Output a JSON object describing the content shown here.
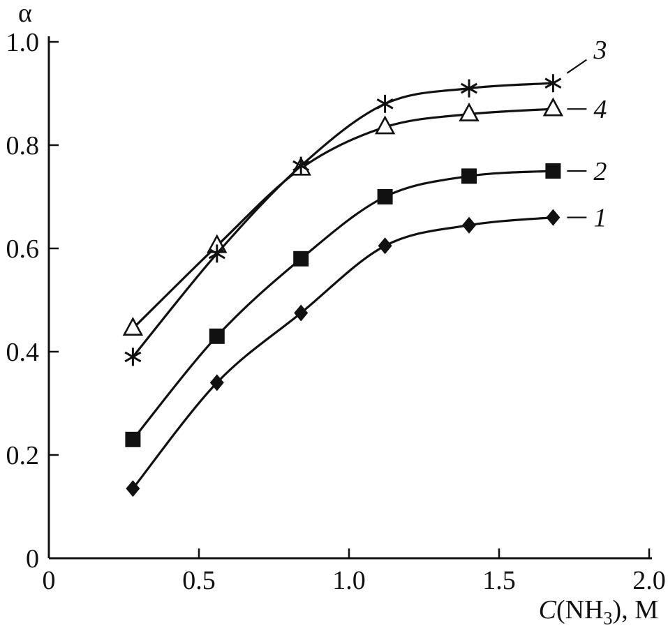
{
  "figure": {
    "background": "#ffffff"
  },
  "chart_data": {
    "type": "line",
    "title": "",
    "xlabel": "C(NH3), M",
    "xlabel_parts": {
      "c": "C",
      "open": "(NH",
      "sub": "3",
      "close": "), M"
    },
    "ylabel": "α",
    "xlim": [
      0,
      2.0
    ],
    "ylim": [
      0,
      1.0
    ],
    "x_ticks": [
      0,
      0.5,
      1.0,
      1.5,
      2.0
    ],
    "x_tick_labels": [
      "0",
      "0.5",
      "1.0",
      "1.5",
      "2.0"
    ],
    "y_ticks": [
      0,
      0.2,
      0.4,
      0.6,
      0.8,
      1.0
    ],
    "y_tick_labels": [
      "0",
      "0.2",
      "0.4",
      "0.6",
      "0.8",
      "1.0"
    ],
    "grid": false,
    "legend_position": "end-of-line-labels",
    "x": [
      0.28,
      0.56,
      0.84,
      1.12,
      1.4,
      1.68
    ],
    "series": [
      {
        "name": "1",
        "marker": "diamond",
        "label_dy": 0,
        "values": [
          0.135,
          0.34,
          0.475,
          0.605,
          0.645,
          0.66
        ]
      },
      {
        "name": "2",
        "marker": "square",
        "label_dy": 0,
        "values": [
          0.23,
          0.43,
          0.58,
          0.7,
          0.74,
          0.75
        ]
      },
      {
        "name": "4",
        "marker": "triangle-open",
        "label_dy": 0,
        "values": [
          0.445,
          0.605,
          0.755,
          0.835,
          0.86,
          0.87
        ]
      },
      {
        "name": "3",
        "marker": "asterisk",
        "label_dy": -48,
        "values": [
          0.39,
          0.59,
          0.76,
          0.88,
          0.91,
          0.92
        ]
      }
    ],
    "colors": {
      "line": "#111111",
      "background": "#ffffff"
    }
  }
}
